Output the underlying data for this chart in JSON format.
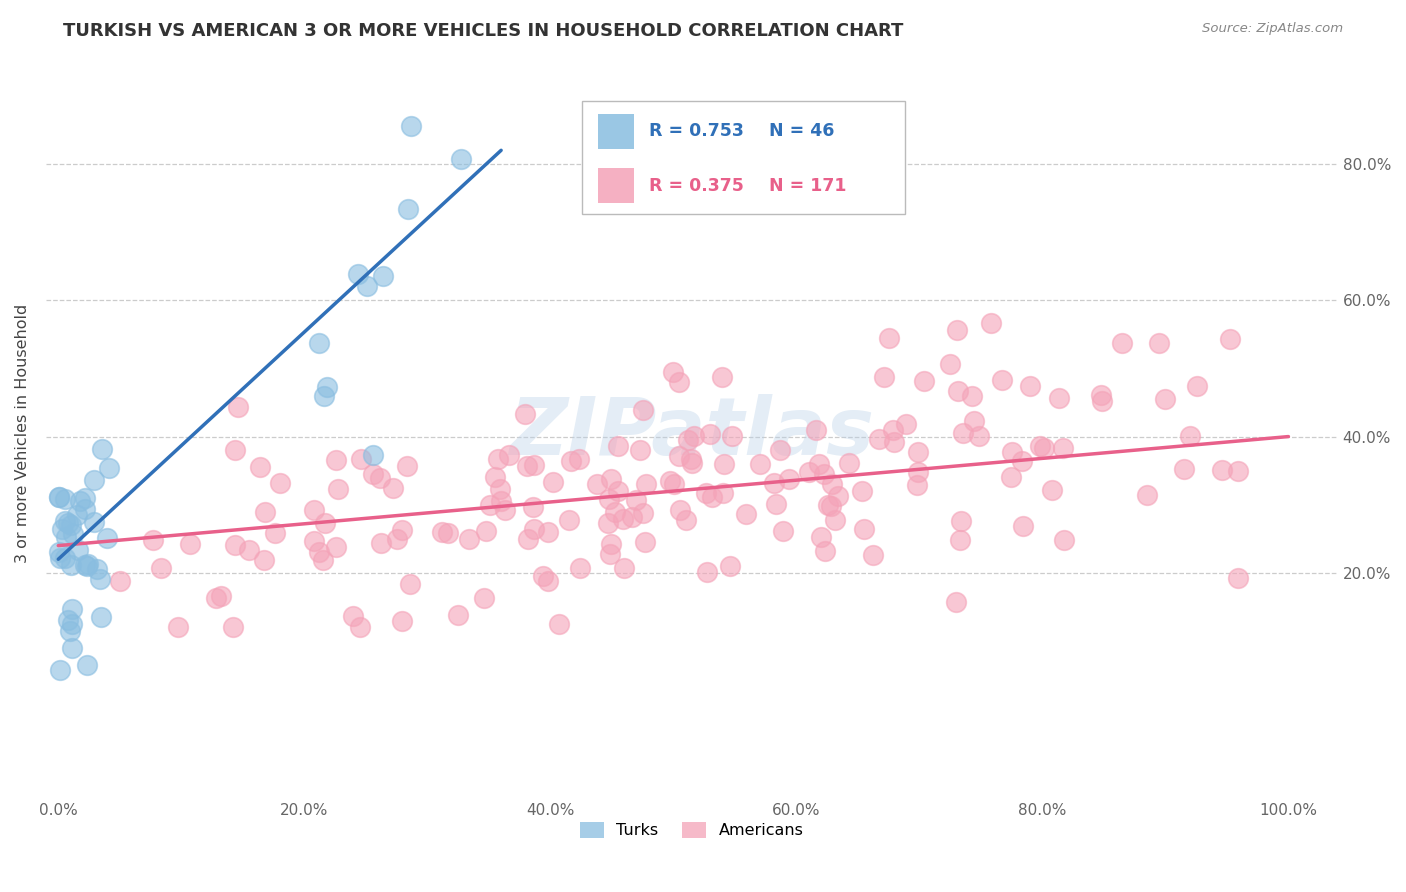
{
  "title": "TURKISH VS AMERICAN 3 OR MORE VEHICLES IN HOUSEHOLD CORRELATION CHART",
  "source": "Source: ZipAtlas.com",
  "ylabel": "3 or more Vehicles in Household",
  "xtick_labels": [
    "0.0%",
    "20.0%",
    "40.0%",
    "60.0%",
    "80.0%",
    "100.0%"
  ],
  "ytick_labels": [
    "20.0%",
    "40.0%",
    "60.0%",
    "80.0%"
  ],
  "watermark": "ZIPatlas",
  "legend_blue_r": "R = 0.753",
  "legend_blue_n": "N = 46",
  "legend_pink_r": "R = 0.375",
  "legend_pink_n": "N = 171",
  "blue_color": "#89bde0",
  "pink_color": "#f4a3b8",
  "blue_line_color": "#3070b8",
  "pink_line_color": "#e8608a",
  "title_color": "#333333",
  "source_color": "#888888",
  "grid_color": "#cccccc",
  "xlim": [
    -0.01,
    1.04
  ],
  "ylim": [
    -0.13,
    0.94
  ],
  "yticks": [
    0.2,
    0.4,
    0.6,
    0.8
  ],
  "xticks": [
    0.0,
    0.2,
    0.4,
    0.6,
    0.8,
    1.0
  ],
  "blue_trend_x0": 0.0,
  "blue_trend_y0": 0.22,
  "blue_trend_x1": 0.36,
  "blue_trend_y1": 0.82,
  "pink_trend_x0": 0.0,
  "pink_trend_y0": 0.24,
  "pink_trend_x1": 1.0,
  "pink_trend_y1": 0.4
}
